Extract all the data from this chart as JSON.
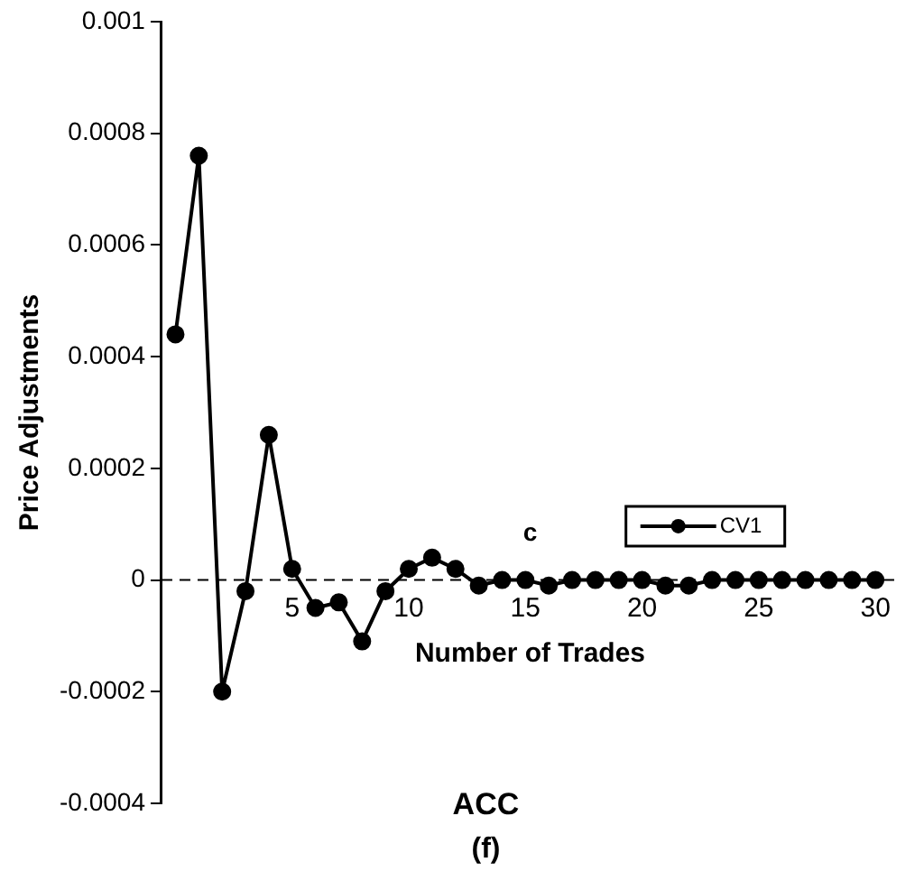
{
  "chart_data": {
    "type": "line",
    "xlabel": "Number of Trades",
    "ylabel": "Price Adjustments",
    "annotations": [
      "c",
      "ACC",
      "(f)"
    ],
    "x": [
      0,
      1,
      2,
      3,
      4,
      5,
      6,
      7,
      8,
      9,
      10,
      11,
      12,
      13,
      14,
      15,
      16,
      17,
      18,
      19,
      20,
      21,
      22,
      23,
      24,
      25,
      26,
      27,
      28,
      29,
      30
    ],
    "series": [
      {
        "name": "CV1",
        "color": "#000000",
        "values": [
          0.00044,
          0.00076,
          -0.0002,
          -2e-05,
          0.00026,
          2e-05,
          -5e-05,
          -4e-05,
          -0.00011,
          -2e-05,
          2e-05,
          4e-05,
          2e-05,
          -1e-05,
          0,
          0,
          -1e-05,
          0,
          0,
          0,
          0,
          -1e-05,
          -1e-05,
          0,
          0,
          0,
          0,
          0,
          0,
          0,
          0
        ]
      }
    ],
    "xlim": [
      -0.6,
      31
    ],
    "xticks": [
      5,
      10,
      15,
      20,
      25,
      30
    ],
    "ylim": [
      -0.0004,
      0.001
    ],
    "yticks": [
      -0.0004,
      -0.0002,
      0,
      0.0002,
      0.0004,
      0.0006,
      0.0008,
      0.001
    ],
    "ref_lines": [
      {
        "axis": "y",
        "value": 0,
        "line_style": "dashed",
        "color": "#000000"
      }
    ],
    "legend": "right",
    "marker": "circle",
    "line_style": "solid",
    "grid": false
  }
}
